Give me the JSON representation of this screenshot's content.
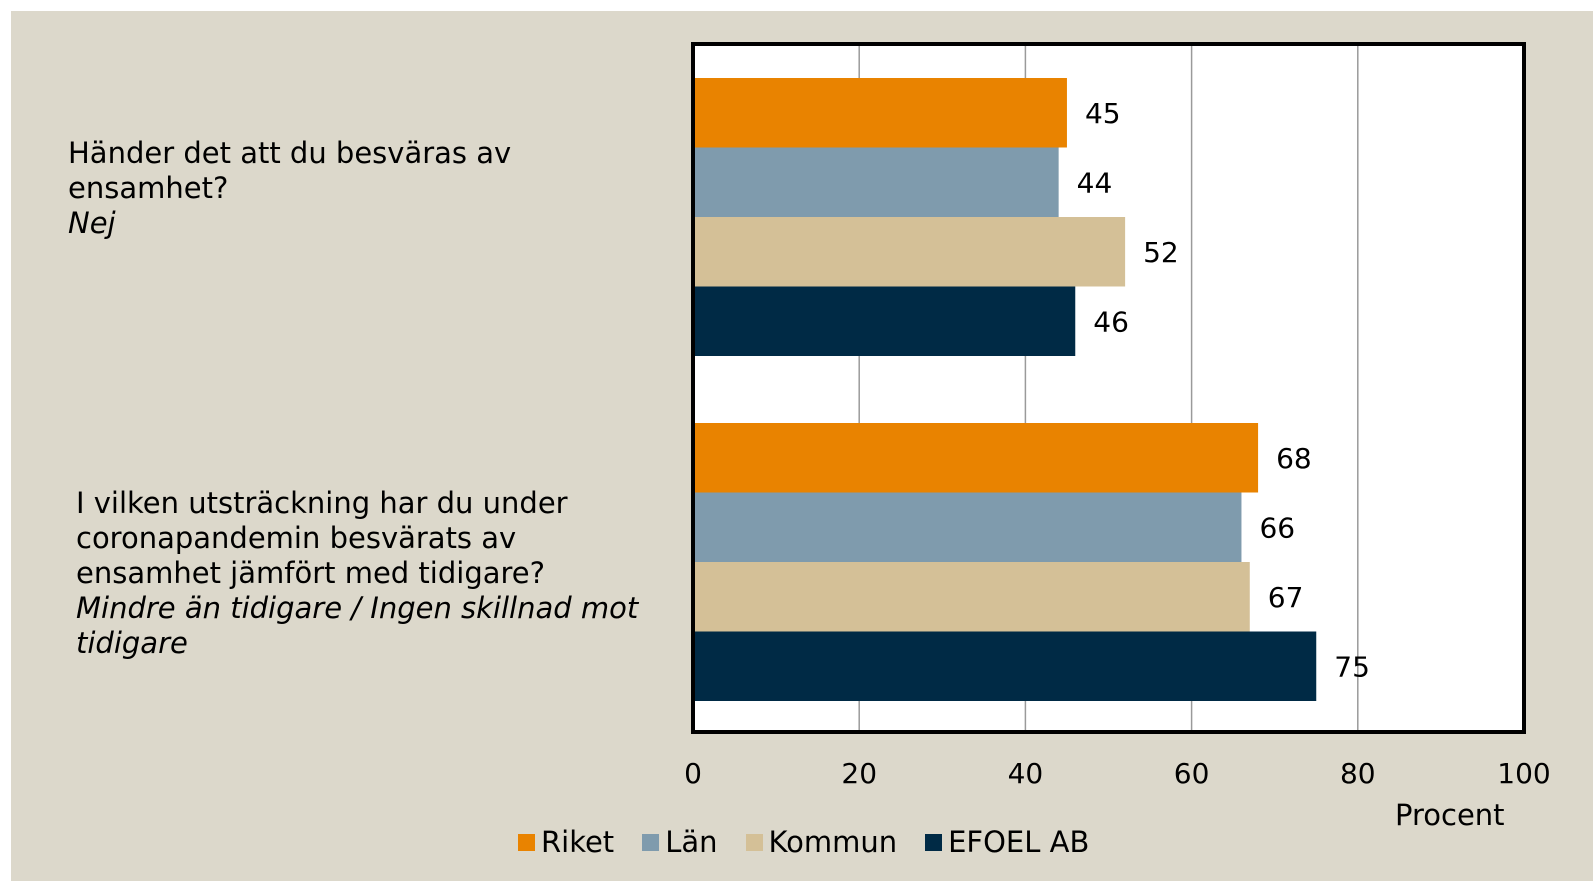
{
  "chart_data": {
    "type": "bar",
    "orientation": "horizontal",
    "categories": [
      {
        "question": "Händer det att du besväras av ensamhet?",
        "answer": "Nej"
      },
      {
        "question": "I vilken utsträckning har du under coronapandemin besvärats av ensamhet jämfört med tidigare?",
        "answer": "Mindre än tidigare / Ingen skillnad mot tidigare"
      }
    ],
    "series": [
      {
        "name": "Riket",
        "color": "#e98300",
        "values": [
          45,
          68
        ]
      },
      {
        "name": "Län",
        "color": "#7f9bad",
        "values": [
          44,
          66
        ]
      },
      {
        "name": "Kommun",
        "color": "#d4c097",
        "values": [
          52,
          67
        ]
      },
      {
        "name": "EFOEL AB",
        "color": "#002a45",
        "values": [
          46,
          75
        ]
      }
    ],
    "xlabel": "Procent",
    "xlim": [
      0,
      100
    ],
    "xticks": [
      0,
      20,
      40,
      60,
      80,
      100
    ],
    "grid": true,
    "legend_position": "bottom",
    "data_labels": true
  },
  "colors": {
    "background": "#dcd8cb",
    "plot_area": "#ffffff",
    "gridline": "#9a9a9a"
  }
}
